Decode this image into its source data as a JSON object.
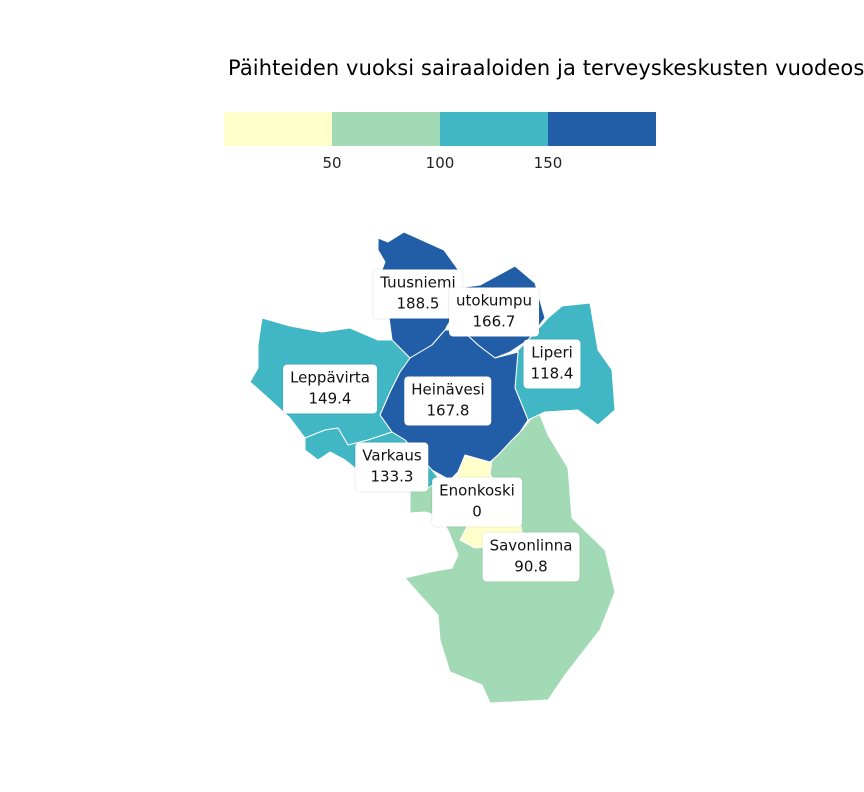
{
  "title": "Päihteiden vuoksi sairaaloiden ja terveyskeskusten vuodeosa",
  "legend": {
    "colors": [
      "#ffffcc",
      "#a1dab4",
      "#41b6c4",
      "#225ea8"
    ],
    "ticks": [
      "50",
      "100",
      "150"
    ]
  },
  "regions": [
    {
      "name": "Tuusniemi",
      "value": "188.5"
    },
    {
      "name": "utokumpu",
      "value": "166.7"
    },
    {
      "name": "Liperi",
      "value": "118.4"
    },
    {
      "name": "Leppävirta",
      "value": "149.4"
    },
    {
      "name": "Heinävesi",
      "value": "167.8"
    },
    {
      "name": "Varkaus",
      "value": "133.3"
    },
    {
      "name": "Enonkoski",
      "value": "0"
    },
    {
      "name": "Savonlinna",
      "value": "90.8"
    }
  ]
}
